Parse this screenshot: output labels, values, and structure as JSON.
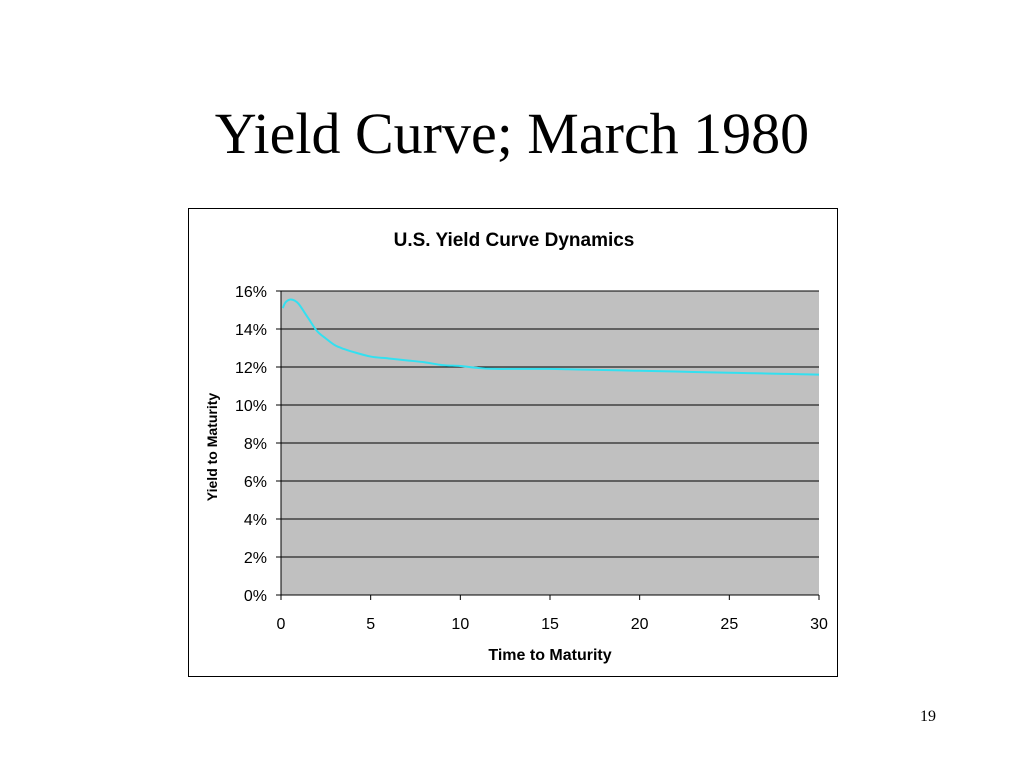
{
  "slide": {
    "title": "Yield Curve; March 1980",
    "page_number": "19"
  },
  "chart_data": {
    "type": "line",
    "title": "U.S. Yield Curve Dynamics",
    "xlabel": "Time to Maturity",
    "ylabel": "Yield to Maturity",
    "xlim": [
      0,
      30
    ],
    "ylim": [
      0,
      0.16
    ],
    "x_ticks": [
      0,
      5,
      10,
      15,
      20,
      25,
      30
    ],
    "y_ticks": [
      0,
      0.02,
      0.04,
      0.06,
      0.08,
      0.1,
      0.12,
      0.14,
      0.16
    ],
    "y_tick_labels": [
      "0%",
      "2%",
      "4%",
      "6%",
      "8%",
      "10%",
      "12%",
      "14%",
      "16%"
    ],
    "grid": "horizontal",
    "legend": "none",
    "colors": {
      "plot_background": "#c0c0c0",
      "gridline": "#000000",
      "line": "#33e0f0"
    },
    "series": [
      {
        "x": [
          0.1,
          0.25,
          0.5,
          0.75,
          1,
          1.5,
          2,
          2.5,
          3,
          3.5,
          4,
          5,
          6,
          7,
          8,
          9,
          10,
          11,
          12,
          13,
          14,
          15,
          16,
          17,
          18,
          19,
          20,
          21,
          22,
          23,
          24,
          25,
          26,
          27,
          28,
          29,
          30
        ],
        "values": [
          0.151,
          0.154,
          0.1555,
          0.155,
          0.153,
          0.146,
          0.139,
          0.135,
          0.1315,
          0.1295,
          0.128,
          0.1255,
          0.1245,
          0.1235,
          0.1225,
          0.121,
          0.1205,
          0.1195,
          0.119,
          0.119,
          0.119,
          0.119,
          0.1188,
          0.1186,
          0.1184,
          0.1182,
          0.118,
          0.1178,
          0.1176,
          0.1174,
          0.1172,
          0.117,
          0.1168,
          0.1166,
          0.1164,
          0.1162,
          0.116
        ]
      }
    ]
  }
}
